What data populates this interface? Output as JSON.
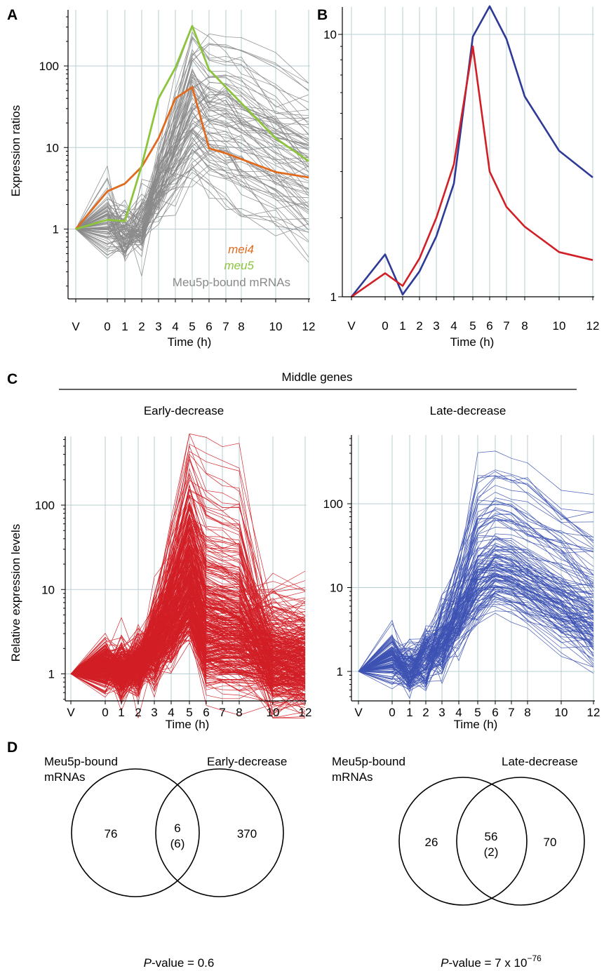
{
  "panels": {
    "A": {
      "letter": "A",
      "ylabel": "Expression ratios",
      "xlabel": "Time (h)",
      "x_ticks": [
        "V",
        "0",
        "1",
        "2",
        "3",
        "4",
        "5",
        "6",
        "7",
        "8",
        "10",
        "12"
      ],
      "y_ticks": [
        "1",
        "10",
        "100"
      ],
      "legend": {
        "mei4": "mei4",
        "meu5": "meu5",
        "bound": "Meu5p-bound mRNAs"
      }
    },
    "B": {
      "letter": "B",
      "xlabel": "Time (h)",
      "x_ticks": [
        "V",
        "0",
        "1",
        "2",
        "3",
        "4",
        "5",
        "6",
        "7",
        "8",
        "10",
        "12"
      ],
      "y_ticks": [
        "1",
        "10"
      ]
    },
    "C": {
      "letter": "C",
      "group_title": "Middle genes",
      "left_title": "Early-decrease",
      "right_title": "Late-decrease",
      "ylabel": "Relative expression levels",
      "xlabel": "Time (h)",
      "x_ticks": [
        "V",
        "0",
        "1",
        "2",
        "3",
        "4",
        "5",
        "6",
        "7",
        "8",
        "10",
        "12"
      ],
      "y_ticks": [
        "1",
        "10",
        "100"
      ]
    },
    "D": {
      "letter": "D",
      "left": {
        "set_a": [
          "Meu5p-bound",
          "mRNAs"
        ],
        "set_b": "Early-decrease",
        "only_a": "76",
        "both": "6",
        "both_sub": "(6)",
        "only_b": "370",
        "pvalue_label": "P",
        "pvalue_rest": "-value = 0.6"
      },
      "right": {
        "set_a": [
          "Meu5p-bound",
          "mRNAs"
        ],
        "set_b": "Late-decrease",
        "only_a": "26",
        "both": "56",
        "both_sub": "(2)",
        "only_b": "70",
        "pvalue_label": "P",
        "pvalue_rest": "-value = 7 x 10",
        "pvalue_exp": "−76"
      }
    }
  },
  "colors": {
    "grid": "#b9cfd6",
    "gray": "#8a8a8a",
    "mei4": "#e06a1e",
    "meu5": "#8cc43c",
    "red": "#d21f26",
    "blue": "#2e3a96",
    "blue_light": "#3d52b3"
  },
  "chart_data": [
    {
      "id": "A",
      "type": "line",
      "log_y": true,
      "x": [
        "V",
        "0",
        "1",
        "2",
        "3",
        "4",
        "5",
        "6",
        "7",
        "8",
        "10",
        "12"
      ],
      "series": [
        {
          "name": "mei4",
          "values": [
            1,
            2.9,
            3.6,
            5.8,
            13,
            40,
            55,
            9.8,
            8.5,
            7.2,
            5,
            4.3
          ]
        },
        {
          "name": "meu5",
          "values": [
            1,
            1.3,
            1.25,
            6,
            40,
            95,
            310,
            90,
            55,
            35,
            13,
            6.8
          ]
        },
        {
          "name": "Meu5p-bound mRNAs",
          "count": 82
        }
      ],
      "ylabel": "Expression ratios",
      "xlabel": "Time (h)",
      "ylim": [
        0.15,
        450
      ]
    },
    {
      "id": "B",
      "type": "line",
      "log_y": true,
      "x": [
        "V",
        "0",
        "1",
        "2",
        "3",
        "4",
        "5",
        "6",
        "7",
        "8",
        "10",
        "12"
      ],
      "series": [
        {
          "color": "blue",
          "values": [
            1,
            1.45,
            1.02,
            1.25,
            1.7,
            2.7,
            9.8,
            12.8,
            9.6,
            5.8,
            3.6,
            2.85
          ]
        },
        {
          "color": "red",
          "values": [
            1,
            1.23,
            1.1,
            1.4,
            2.0,
            3.2,
            9.0,
            3.0,
            2.2,
            1.85,
            1.48,
            1.38
          ]
        }
      ],
      "xlabel": "Time (h)",
      "ylim": [
        1,
        14
      ]
    },
    {
      "id": "C-left",
      "type": "line",
      "log_y": true,
      "title": "Early-decrease",
      "x": [
        "V",
        "0",
        "1",
        "2",
        "3",
        "4",
        "5",
        "6",
        "7",
        "8",
        "10",
        "12"
      ],
      "series": [
        {
          "name": "Early-decrease",
          "count": 376
        }
      ],
      "ylabel": "Relative expression levels",
      "xlabel": "Time (h)",
      "ylim": [
        0.28,
        900
      ]
    },
    {
      "id": "C-right",
      "type": "line",
      "log_y": true,
      "title": "Late-decrease",
      "x": [
        "V",
        "0",
        "1",
        "2",
        "3",
        "4",
        "5",
        "6",
        "7",
        "8",
        "10",
        "12"
      ],
      "series": [
        {
          "name": "Late-decrease",
          "count": 126
        }
      ],
      "xlabel": "Time (h)",
      "ylim": [
        0.22,
        900
      ]
    }
  ]
}
